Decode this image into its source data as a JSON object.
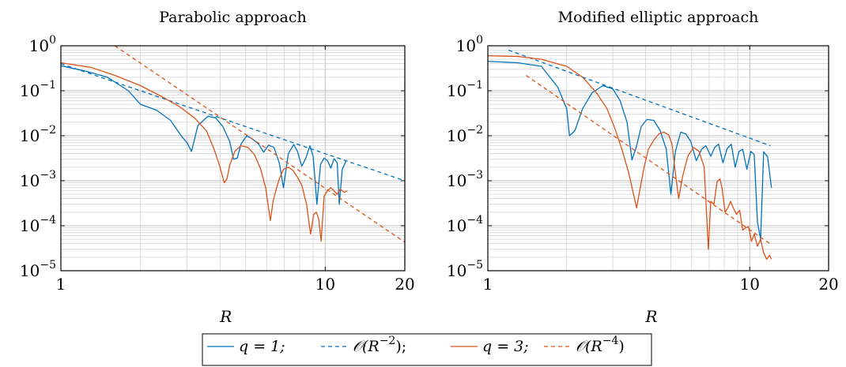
{
  "chart_data": [
    {
      "type": "line",
      "title": "Parabolic approach",
      "xlabel": "R",
      "x_scale": "log",
      "y_scale": "log",
      "xlim": [
        1,
        20
      ],
      "ylim": [
        1e-05,
        1
      ],
      "x_ticks": [
        {
          "value": 1,
          "label": "1"
        },
        {
          "value": 10,
          "label": "10"
        },
        {
          "value": 20,
          "label": "20"
        }
      ],
      "y_ticks": [
        {
          "value": 1,
          "base": "10",
          "exp": "0"
        },
        {
          "value": 0.1,
          "base": "10",
          "exp": "−1"
        },
        {
          "value": 0.01,
          "base": "10",
          "exp": "−2"
        },
        {
          "value": 0.001,
          "base": "10",
          "exp": "−3"
        },
        {
          "value": 0.0001,
          "base": "10",
          "exp": "−4"
        },
        {
          "value": 1e-05,
          "base": "10",
          "exp": "−5"
        }
      ],
      "grid": true,
      "series": [
        {
          "name": "q = 1",
          "color": "#0072BD",
          "dash": "solid",
          "x": [
            1,
            1.25,
            1.5,
            1.8,
            2.0,
            2.3,
            2.6,
            2.85,
            3.0,
            3.12,
            3.3,
            3.6,
            3.85,
            4.1,
            4.35,
            4.5,
            4.65,
            4.8,
            5.05,
            5.3,
            5.6,
            5.85,
            6.1,
            6.4,
            6.7,
            6.95,
            7.25,
            7.6,
            7.85,
            8.15,
            8.45,
            8.75,
            9.0,
            9.3,
            9.6,
            9.9,
            10.2,
            10.5,
            10.8,
            11.1,
            11.3,
            11.6,
            12.0
          ],
          "y": [
            0.36,
            0.27,
            0.2,
            0.1,
            0.05,
            0.037,
            0.022,
            0.01,
            0.007,
            0.0045,
            0.017,
            0.027,
            0.025,
            0.016,
            0.0075,
            0.003,
            0.0032,
            0.0065,
            0.01,
            0.0085,
            0.0065,
            0.0043,
            0.0062,
            0.0055,
            0.0025,
            0.0007,
            0.004,
            0.0064,
            0.0045,
            0.0021,
            0.0032,
            0.006,
            0.0035,
            0.0003,
            0.0023,
            0.0032,
            0.0028,
            0.0019,
            0.0031,
            0.0025,
            0.0003,
            0.0018,
            0.0028
          ]
        },
        {
          "name": "O(R^-2)",
          "color": "#0072BD",
          "dash": "dashed",
          "x": [
            1,
            20
          ],
          "y": [
            0.4,
            0.001
          ]
        },
        {
          "name": "q = 3",
          "color": "#D95319",
          "dash": "solid",
          "x": [
            1,
            1.3,
            1.6,
            2.0,
            2.4,
            2.8,
            3.2,
            3.55,
            3.8,
            4.0,
            4.15,
            4.25,
            4.35,
            4.55,
            4.8,
            5.1,
            5.4,
            5.7,
            5.95,
            6.2,
            6.35,
            6.5,
            6.7,
            6.95,
            7.25,
            7.55,
            7.85,
            8.15,
            8.5,
            8.8,
            9.05,
            9.25,
            9.45,
            9.65,
            9.9,
            10.2,
            10.5,
            10.8,
            11.1,
            11.4,
            11.8,
            12.1
          ],
          "y": [
            0.42,
            0.33,
            0.22,
            0.13,
            0.075,
            0.045,
            0.025,
            0.013,
            0.005,
            0.002,
            0.0009,
            0.0011,
            0.0022,
            0.0045,
            0.006,
            0.0055,
            0.0038,
            0.0018,
            0.0007,
            0.00013,
            0.00035,
            0.0006,
            0.0011,
            0.0018,
            0.002,
            0.0017,
            0.0012,
            0.0008,
            0.0003,
            6.5e-05,
            0.00018,
            0.0002,
            0.00014,
            4.5e-05,
            0.00045,
            0.0006,
            0.0007,
            0.0006,
            0.0005,
            0.00065,
            0.00055,
            0.0006
          ]
        },
        {
          "name": "O(R^-4)",
          "color": "#D95319",
          "dash": "dashed",
          "x": [
            1.6,
            20
          ],
          "y": [
            1,
            4.3e-05
          ]
        }
      ]
    },
    {
      "type": "line",
      "title": "Modified elliptic approach",
      "xlabel": "R",
      "x_scale": "log",
      "y_scale": "log",
      "xlim": [
        1,
        20
      ],
      "ylim": [
        1e-05,
        1
      ],
      "x_ticks": [
        {
          "value": 1,
          "label": "1"
        },
        {
          "value": 10,
          "label": "10"
        },
        {
          "value": 20,
          "label": "20"
        }
      ],
      "y_ticks": [
        {
          "value": 1,
          "base": "10",
          "exp": "0"
        },
        {
          "value": 0.1,
          "base": "10",
          "exp": "−1"
        },
        {
          "value": 0.01,
          "base": "10",
          "exp": "−2"
        },
        {
          "value": 0.001,
          "base": "10",
          "exp": "−3"
        },
        {
          "value": 0.0001,
          "base": "10",
          "exp": "−4"
        },
        {
          "value": 1e-05,
          "base": "10",
          "exp": "−5"
        }
      ],
      "grid": true,
      "series": [
        {
          "name": "q = 1",
          "color": "#0072BD",
          "dash": "solid",
          "x": [
            1,
            1.3,
            1.6,
            1.85,
            2.0,
            2.05,
            2.15,
            2.3,
            2.5,
            2.75,
            3.0,
            3.2,
            3.4,
            3.55,
            3.7,
            3.85,
            4.05,
            4.3,
            4.55,
            4.8,
            5.0,
            5.2,
            5.45,
            5.7,
            5.95,
            6.25,
            6.55,
            6.8,
            7.1,
            7.35,
            7.6,
            7.9,
            8.2,
            8.5,
            8.8,
            9.1,
            9.4,
            9.75,
            10.1,
            10.4,
            10.7,
            11.0,
            11.3,
            11.7,
            12.1
          ],
          "y": [
            0.45,
            0.42,
            0.35,
            0.12,
            0.04,
            0.01,
            0.013,
            0.04,
            0.09,
            0.13,
            0.11,
            0.06,
            0.02,
            0.0029,
            0.006,
            0.016,
            0.023,
            0.022,
            0.013,
            0.005,
            0.0005,
            0.0045,
            0.012,
            0.011,
            0.0075,
            0.0028,
            0.005,
            0.006,
            0.0035,
            0.0055,
            0.0065,
            0.0025,
            0.0052,
            0.0065,
            0.002,
            0.0045,
            0.005,
            0.0018,
            0.0045,
            0.0038,
            0.00012,
            5e-05,
            0.0044,
            0.0034,
            0.0007
          ]
        },
        {
          "name": "O(R^-2)",
          "color": "#0072BD",
          "dash": "dashed",
          "x": [
            1.2,
            12
          ],
          "y": [
            0.8,
            0.006
          ]
        },
        {
          "name": "q = 3",
          "color": "#D95319",
          "dash": "solid",
          "x": [
            1,
            1.3,
            1.6,
            2.0,
            2.3,
            2.6,
            2.85,
            3.05,
            3.25,
            3.45,
            3.6,
            3.7,
            3.8,
            3.95,
            4.1,
            4.3,
            4.5,
            4.7,
            4.9,
            5.05,
            5.2,
            5.35,
            5.55,
            5.8,
            6.1,
            6.4,
            6.7,
            6.95,
            7.1,
            7.3,
            7.5,
            7.7,
            7.85,
            8.05,
            8.25,
            8.45,
            8.65,
            8.9,
            9.15,
            9.4,
            9.65,
            9.9,
            10.15,
            10.4,
            10.7,
            11.0,
            11.3,
            11.6,
            11.9,
            12.1
          ],
          "y": [
            0.6,
            0.58,
            0.5,
            0.35,
            0.2,
            0.09,
            0.04,
            0.015,
            0.005,
            0.0015,
            0.0005,
            0.00025,
            0.0006,
            0.002,
            0.005,
            0.008,
            0.011,
            0.012,
            0.0105,
            0.0065,
            0.0015,
            0.0004,
            0.0013,
            0.0035,
            0.0055,
            0.0045,
            0.002,
            3e-05,
            0.00035,
            0.0003,
            0.00095,
            0.0011,
            0.00065,
            0.0002,
            0.00025,
            0.00035,
            0.00025,
            0.00018,
            0.00022,
            8e-05,
            9e-05,
            9.5e-05,
            4.5e-05,
            6.5e-05,
            3.5e-05,
            5e-05,
            2.5e-05,
            1.8e-05,
            2.2e-05,
            1.8e-05
          ]
        },
        {
          "name": "O(R^-4)",
          "color": "#D95319",
          "dash": "dashed",
          "x": [
            1.4,
            12
          ],
          "y": [
            0.22,
            3.9e-05
          ]
        }
      ]
    }
  ],
  "legend": {
    "entries": [
      {
        "color": "#0072BD",
        "dash": "solid",
        "prefix": "q = 1;",
        "exp": ""
      },
      {
        "color": "#0072BD",
        "dash": "dashed",
        "prefix": "𝒪(R",
        "exp": "−2",
        "suffix": ");"
      },
      {
        "color": "#D95319",
        "dash": "solid",
        "prefix": "q = 3;",
        "exp": ""
      },
      {
        "color": "#D95319",
        "dash": "dashed",
        "prefix": "𝒪(R",
        "exp": "−4",
        "suffix": ")"
      }
    ]
  }
}
